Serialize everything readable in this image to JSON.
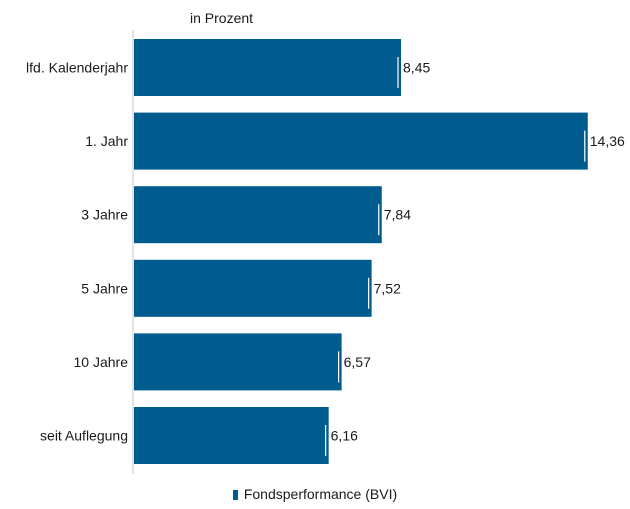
{
  "chart_data": {
    "type": "bar",
    "orientation": "horizontal",
    "unit_label": "in Prozent",
    "categories": [
      "lfd. Kalenderjahr",
      "1. Jahr",
      "3  Jahre",
      "5 Jahre",
      "10 Jahre",
      "seit Auflegung"
    ],
    "series": [
      {
        "name": "Fondsperformance (BVI)",
        "values": [
          8.45,
          14.36,
          7.84,
          7.52,
          6.57,
          6.16
        ],
        "labels": [
          "8,45",
          "14,36",
          "7,84",
          "7,52",
          "6,57",
          "6,16"
        ],
        "color": "#005b8e"
      }
    ],
    "xlim": [
      0,
      15
    ],
    "grid": false,
    "legend_position": "bottom"
  }
}
